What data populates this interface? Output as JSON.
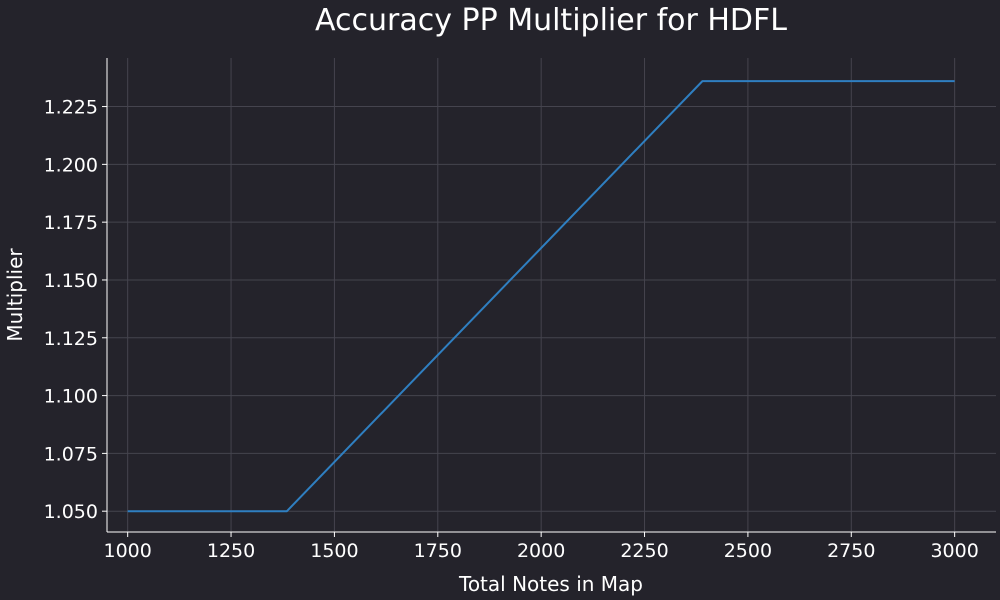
{
  "chart_data": {
    "type": "line",
    "title": "Accuracy PP Multiplier for HDFL",
    "xlabel": "Total Notes in Map",
    "ylabel": "Multiplier",
    "xlim": [
      950,
      3100
    ],
    "ylim": [
      1.041,
      1.246
    ],
    "xticks": [
      1000,
      1250,
      1500,
      1750,
      2000,
      2250,
      2500,
      2750,
      3000
    ],
    "xtick_labels": [
      "1000",
      "1250",
      "1500",
      "1750",
      "2000",
      "2250",
      "2500",
      "2750",
      "3000"
    ],
    "yticks": [
      1.05,
      1.075,
      1.1,
      1.125,
      1.15,
      1.175,
      1.2,
      1.225
    ],
    "ytick_labels": [
      "1.050",
      "1.075",
      "1.100",
      "1.125",
      "1.150",
      "1.175",
      "1.200",
      "1.225"
    ],
    "grid": true,
    "series": [
      {
        "color": "#2f7fc1",
        "x": [
          1000,
          1385,
          2390,
          3000
        ],
        "y": [
          1.05,
          1.05,
          1.236,
          1.236
        ]
      }
    ]
  }
}
